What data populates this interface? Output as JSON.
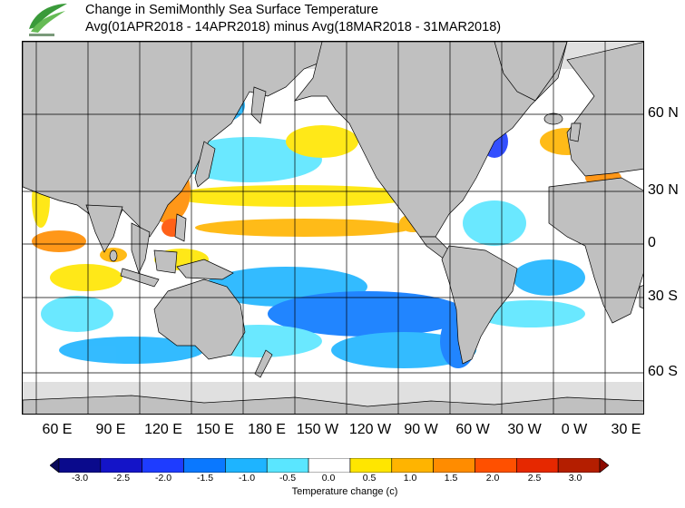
{
  "header": {
    "title_line1": "Change in SemiMonthly Sea Surface Temperature",
    "title_line2": "Avg(01APR2018 - 14APR2018) minus Avg(18MAR2018 - 31MAR2018)"
  },
  "map": {
    "land_color": "#c0c0c0",
    "ice_color": "#e0e0e0",
    "ocean_color": "#ffffff",
    "x_ticks": [
      "60 E",
      "90 E",
      "120 E",
      "150 E",
      "180 E",
      "150 W",
      "120 W",
      "90 W",
      "60 W",
      "30 W",
      "0 W",
      "30 E"
    ],
    "y_ticks": [
      "60 N",
      "30 N",
      "0",
      "30 S",
      "60 S"
    ]
  },
  "colorbar": {
    "title": "Temperature change  (c)",
    "labels": [
      "-3.0",
      "-2.5",
      "-2.0",
      "-1.5",
      "-1.0",
      "-0.5",
      "0.0",
      "0.5",
      "1.0",
      "1.5",
      "2.0",
      "2.5",
      "3.0"
    ],
    "colors": [
      "#0a0a8c",
      "#1414c8",
      "#1e3cff",
      "#0a78ff",
      "#1eb4ff",
      "#5ae6ff",
      "#ffffff",
      "#ffe600",
      "#ffb400",
      "#ff8c00",
      "#ff5000",
      "#e62800",
      "#b41e00"
    ]
  }
}
